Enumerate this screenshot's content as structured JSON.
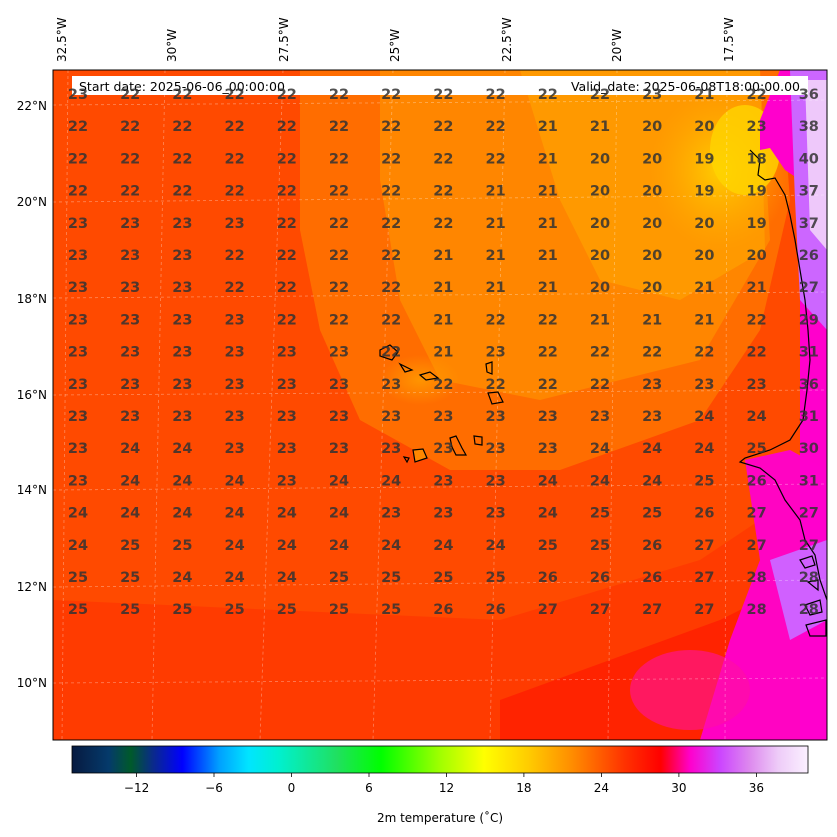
{
  "map": {
    "start_date": "Start date: 2025-06-06_00:00:00",
    "valid_date": "Valid_date: 2025-06-08T18:00:00.00",
    "lon_labels": [
      "32.5°W",
      "30°W",
      "27.5°W",
      "25°W",
      "22.5°W",
      "20°W",
      "17.5°W"
    ],
    "lat_labels": [
      "22°N",
      "20°N",
      "18°N",
      "16°N",
      "14°N",
      "12°N",
      "10°N"
    ],
    "colorbar": {
      "label": "2m temperature ($^\\circ$C)",
      "display_label": "2m temperature (˚C)",
      "ticks": [
        "−12",
        "−6",
        "0",
        "6",
        "12",
        "18",
        "24",
        "30",
        "36"
      ],
      "tick_values": [
        -12,
        -6,
        0,
        6,
        12,
        18,
        24,
        30,
        36
      ],
      "range": [
        -17,
        40
      ]
    },
    "temperature_grid": [
      [
        "23",
        "22",
        "22",
        "22",
        "22",
        "22",
        "22",
        "22",
        "22",
        "22",
        "22",
        "23",
        "21",
        "22",
        "36"
      ],
      [
        "22",
        "22",
        "22",
        "22",
        "22",
        "22",
        "22",
        "22",
        "22",
        "21",
        "21",
        "20",
        "20",
        "23",
        "38"
      ],
      [
        "22",
        "22",
        "22",
        "22",
        "22",
        "22",
        "22",
        "22",
        "22",
        "21",
        "20",
        "20",
        "19",
        "18",
        "40"
      ],
      [
        "22",
        "22",
        "22",
        "22",
        "22",
        "22",
        "22",
        "22",
        "21",
        "21",
        "20",
        "20",
        "19",
        "19",
        "37"
      ],
      [
        "23",
        "23",
        "23",
        "23",
        "22",
        "22",
        "22",
        "22",
        "21",
        "21",
        "20",
        "20",
        "20",
        "19",
        "37"
      ],
      [
        "23",
        "23",
        "23",
        "22",
        "22",
        "22",
        "22",
        "21",
        "21",
        "21",
        "20",
        "20",
        "20",
        "20",
        "26"
      ],
      [
        "23",
        "23",
        "23",
        "22",
        "22",
        "22",
        "22",
        "21",
        "21",
        "21",
        "20",
        "20",
        "21",
        "21",
        "27"
      ],
      [
        "23",
        "23",
        "23",
        "23",
        "22",
        "22",
        "22",
        "21",
        "22",
        "22",
        "21",
        "21",
        "21",
        "22",
        "29"
      ],
      [
        "23",
        "23",
        "23",
        "23",
        "23",
        "23",
        "22",
        "21",
        "23",
        "22",
        "22",
        "22",
        "22",
        "22",
        "31"
      ],
      [
        "23",
        "23",
        "23",
        "23",
        "23",
        "23",
        "23",
        "22",
        "22",
        "22",
        "22",
        "23",
        "23",
        "23",
        "36"
      ],
      [
        "23",
        "23",
        "23",
        "23",
        "23",
        "23",
        "23",
        "23",
        "23",
        "23",
        "23",
        "23",
        "24",
        "24",
        "31"
      ],
      [
        "23",
        "24",
        "24",
        "23",
        "23",
        "23",
        "23",
        "23",
        "23",
        "23",
        "24",
        "24",
        "24",
        "25",
        "30"
      ],
      [
        "23",
        "24",
        "24",
        "24",
        "23",
        "24",
        "24",
        "23",
        "23",
        "24",
        "24",
        "24",
        "25",
        "26",
        "31"
      ],
      [
        "24",
        "24",
        "24",
        "24",
        "24",
        "24",
        "23",
        "23",
        "23",
        "24",
        "25",
        "25",
        "26",
        "27",
        "27"
      ],
      [
        "24",
        "25",
        "25",
        "24",
        "24",
        "24",
        "24",
        "24",
        "24",
        "25",
        "25",
        "26",
        "27",
        "27",
        "27"
      ],
      [
        "25",
        "25",
        "24",
        "24",
        "24",
        "25",
        "25",
        "25",
        "25",
        "26",
        "26",
        "26",
        "27",
        "28",
        "28"
      ],
      [
        "25",
        "25",
        "25",
        "25",
        "25",
        "25",
        "25",
        "26",
        "26",
        "27",
        "27",
        "27",
        "27",
        "28",
        "28"
      ]
    ]
  }
}
